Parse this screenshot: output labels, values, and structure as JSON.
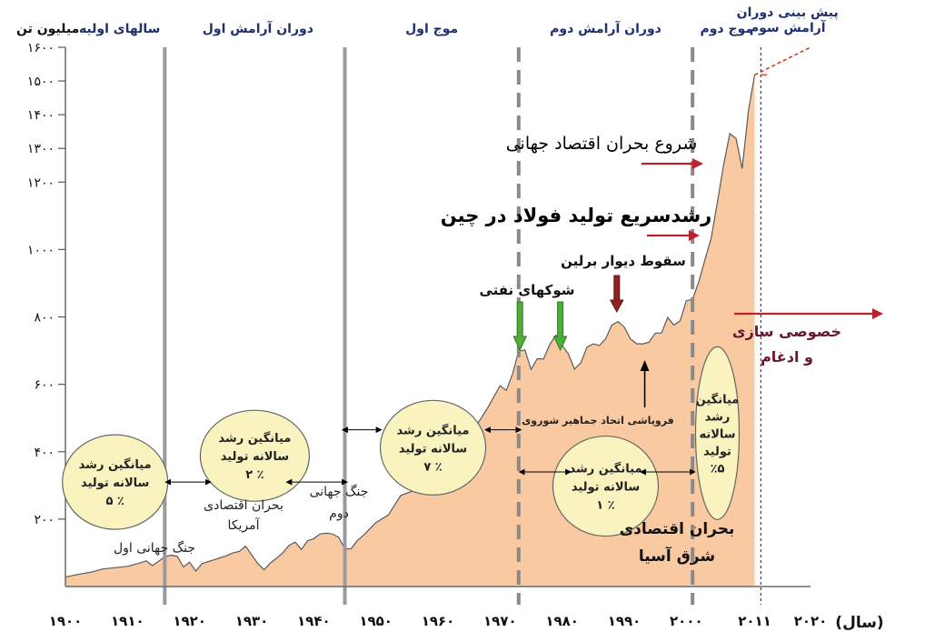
{
  "chart_data": {
    "type": "area",
    "ylabel": "میلیون تن",
    "xlabel": "(سال)",
    "xlim": [
      1900,
      2020
    ],
    "ylim": [
      0,
      1600
    ],
    "x_ticks": [
      {
        "value": 1900,
        "label": "۱۹۰۰"
      },
      {
        "value": 1910,
        "label": "۱۹۱۰"
      },
      {
        "value": 1920,
        "label": "۱۹۲۰"
      },
      {
        "value": 1930,
        "label": "۱۹۳۰"
      },
      {
        "value": 1940,
        "label": "۱۹۴۰"
      },
      {
        "value": 1950,
        "label": "۱۹۵۰"
      },
      {
        "value": 1960,
        "label": "۱۹۶۰"
      },
      {
        "value": 1970,
        "label": "۱۹۷۰"
      },
      {
        "value": 1980,
        "label": "۱۹۸۰"
      },
      {
        "value": 1990,
        "label": "۱۹۹۰"
      },
      {
        "value": 2000,
        "label": "۲۰۰۰"
      },
      {
        "value": 2011,
        "label": "۲۰۱۱"
      },
      {
        "value": 2020,
        "label": "۲۰۲۰"
      }
    ],
    "y_ticks": [
      {
        "value": 200,
        "label": "۲۰۰"
      },
      {
        "value": 400,
        "label": "۴۰۰"
      },
      {
        "value": 600,
        "label": "۶۰۰"
      },
      {
        "value": 800,
        "label": "۸۰۰"
      },
      {
        "value": 1000,
        "label": "۱۰۰۰"
      },
      {
        "value": 1200,
        "label": "۱۲۰۰"
      },
      {
        "value": 1300,
        "label": "۱۳۰۰"
      },
      {
        "value": 1400,
        "label": "۱۴۰۰"
      },
      {
        "value": 1500,
        "label": "۱۵۰۰"
      },
      {
        "value": 1600,
        "label": "۱۶۰۰"
      }
    ],
    "series": [
      {
        "color": "#f9c9a1",
        "x": [
          1900,
          1902,
          1904,
          1906,
          1908,
          1910,
          1912,
          1913,
          1914,
          1916,
          1917,
          1918,
          1919,
          1920,
          1921,
          1922,
          1924,
          1926,
          1927,
          1928,
          1929,
          1930,
          1931,
          1932,
          1933,
          1934,
          1935,
          1936,
          1937,
          1938,
          1939,
          1940,
          1941,
          1942,
          1943,
          1944,
          1945,
          1946,
          1947,
          1948,
          1950,
          1952,
          1954,
          1956,
          1958,
          1960,
          1962,
          1964,
          1966,
          1968,
          1970,
          1971,
          1972,
          1973,
          1974,
          1975,
          1976,
          1977,
          1978,
          1979,
          1980,
          1981,
          1982,
          1983,
          1984,
          1985,
          1986,
          1987,
          1988,
          1989,
          1990,
          1991,
          1992,
          1993,
          1994,
          1995,
          1996,
          1997,
          1998,
          1999,
          2000,
          2001,
          2002,
          2003,
          2004,
          2005,
          2006,
          2007,
          2008,
          2009,
          2010,
          2011
        ],
        "y": [
          28,
          36,
          42,
          52,
          56,
          60,
          70,
          76,
          62,
          88,
          93,
          90,
          58,
          72,
          46,
          68,
          80,
          92,
          100,
          104,
          120,
          94,
          68,
          50,
          70,
          84,
          100,
          122,
          132,
          110,
          136,
          142,
          156,
          158,
          156,
          146,
          112,
          112,
          136,
          152,
          190,
          212,
          270,
          284,
          300,
          346,
          380,
          396,
          472,
          530,
          596,
          582,
          630,
          698,
          702,
          644,
          676,
          675,
          718,
          746,
          716,
          690,
          645,
          664,
          710,
          720,
          715,
          735,
          776,
          786,
          770,
          735,
          720,
          720,
          725,
          752,
          752,
          798,
          776,
          788,
          848,
          852,
          904,
          970,
          1034,
          1140,
          1250,
          1344,
          1330,
          1240,
          1412,
          1518
        ]
      }
    ],
    "projection": {
      "x": [
        2011,
        2020
      ],
      "y": [
        1518,
        1600
      ]
    },
    "phases": [
      {
        "label": "سالهای اولیه",
        "x_from": 1900,
        "x_to": 1916
      },
      {
        "label": "دوران آرامش اول",
        "x_from": 1916,
        "x_to": 1945
      },
      {
        "label": "موج اول",
        "x_from": 1945,
        "x_to": 1973
      },
      {
        "label": "دوران آرامش دوم",
        "x_from": 1973,
        "x_to": 2001
      },
      {
        "label": "موج دوم",
        "x_from": 2001,
        "x_to": 2012
      },
      {
        "label": "پیش بینی دوران\nآرامش سوم",
        "x_from": 2012,
        "x_to": 2020
      }
    ],
    "dividers": [
      {
        "x": 1916,
        "style": "solid"
      },
      {
        "x": 1945,
        "style": "solid"
      },
      {
        "x": 1973,
        "style": "dashed"
      },
      {
        "x": 2001,
        "style": "dashed"
      },
      {
        "x": 2012,
        "style": "dotted"
      }
    ],
    "growth_bubbles": [
      {
        "lines": [
          "میانگین رشد",
          "سالانه تولید",
          "٪ ۵"
        ],
        "x_from": 1900,
        "x_to": 1916
      },
      {
        "lines": [
          "میانگین رشد",
          "سالانه تولید",
          "٪ ۲"
        ],
        "x_from": 1916,
        "x_to": 1945
      },
      {
        "lines": [
          "میانگین رشد",
          "سالانه تولید",
          "٪ ۷"
        ],
        "x_from": 1945,
        "x_to": 1973
      },
      {
        "lines": [
          "میانگین رشد",
          "سالانه تولید",
          "٪ ۱"
        ],
        "x_from": 1973,
        "x_to": 2001
      },
      {
        "lines": [
          "میانگین",
          "رشد",
          "سالانه",
          "تولید",
          "٪۵"
        ],
        "x_from": 2001,
        "x_to": 2012
      }
    ],
    "annotations": [
      {
        "id": "ww1",
        "text": "جنگ جهانی اول"
      },
      {
        "id": "us_crisis",
        "text": "بحران اقتصادی\nآمریکا"
      },
      {
        "id": "ww2",
        "text": "جنگ جهانی\nدوم"
      },
      {
        "id": "oil_shocks",
        "text": "شوکهای نفتی"
      },
      {
        "id": "berlin_wall",
        "text": "سقوط دیوار برلین"
      },
      {
        "id": "ussr_collapse",
        "text": "فروپاشی اتحاد جماهیر شوروی"
      },
      {
        "id": "asia_crisis",
        "text": "بحران اقتصادی\nشرق آسیا"
      },
      {
        "id": "china_growth",
        "text": "رشدسریع تولید فولاد در چین"
      },
      {
        "id": "global_crisis",
        "text": "شروع بحران اقتصاد جهانی"
      },
      {
        "id": "privatization",
        "text": "خصوصی سازی\nو ادغام"
      }
    ],
    "grid": false,
    "legend": "none"
  }
}
